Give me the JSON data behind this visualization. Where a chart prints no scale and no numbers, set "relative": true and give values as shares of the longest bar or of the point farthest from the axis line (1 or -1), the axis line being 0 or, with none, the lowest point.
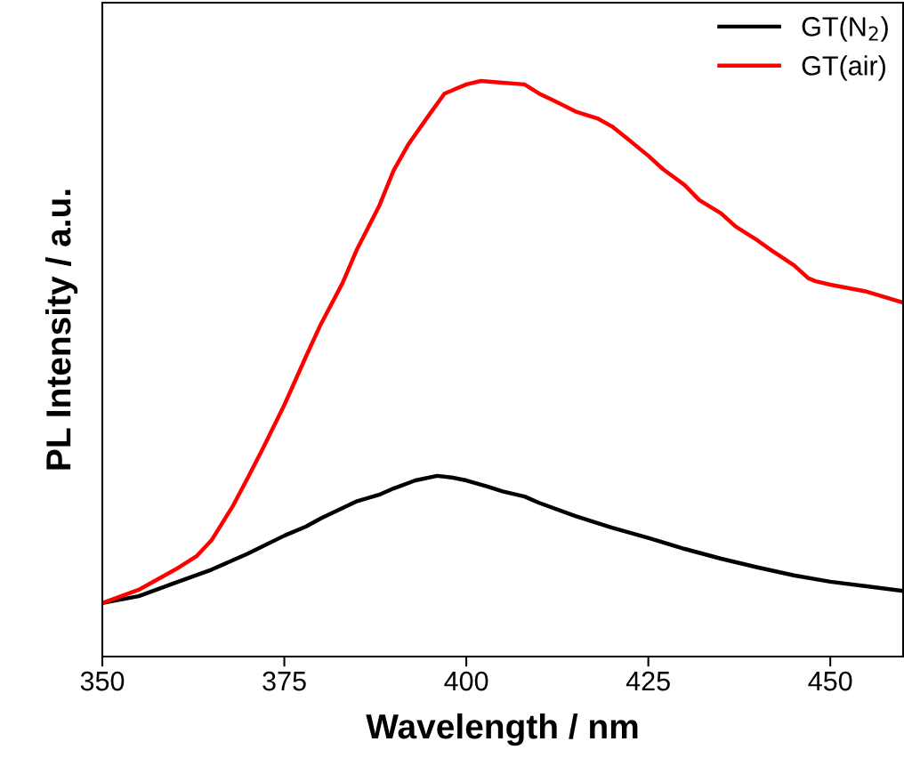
{
  "chart_data": {
    "type": "line",
    "xlabel": "Wavelength / nm",
    "ylabel": "PL Intensity / a.u.",
    "relative": true,
    "tick_labels": "x",
    "legend": "top right",
    "xlim": [
      350,
      460
    ],
    "xticks": [
      350,
      375,
      400,
      425,
      450
    ],
    "line_style": "solid",
    "series": [
      {
        "name": "GT(N$_{2}$)",
        "color": "#000000",
        "x": [
          350,
          355,
          360,
          365,
          370,
          375,
          378,
          380,
          385,
          388,
          390,
          393,
          396,
          398,
          400,
          403,
          405,
          408,
          410,
          415,
          420,
          425,
          430,
          435,
          440,
          445,
          450,
          455,
          460
        ],
        "values": [
          0.093,
          0.105,
          0.128,
          0.151,
          0.179,
          0.21,
          0.226,
          0.24,
          0.27,
          0.281,
          0.292,
          0.306,
          0.314,
          0.311,
          0.306,
          0.295,
          0.287,
          0.278,
          0.267,
          0.244,
          0.224,
          0.206,
          0.187,
          0.17,
          0.155,
          0.141,
          0.13,
          0.122,
          0.114
        ]
      },
      {
        "name": "GT(air)",
        "color": "#ff0000",
        "x": [
          350,
          355,
          360,
          363,
          365,
          368,
          370,
          372,
          375,
          378,
          380,
          383,
          385,
          388,
          390,
          392,
          395,
          397,
          400,
          402,
          405,
          408,
          410,
          412,
          415,
          418,
          420,
          422,
          425,
          427,
          430,
          432,
          435,
          437,
          440,
          442,
          445,
          447,
          448,
          450,
          455,
          460
        ],
        "values": [
          0.093,
          0.116,
          0.151,
          0.175,
          0.202,
          0.263,
          0.311,
          0.36,
          0.437,
          0.522,
          0.577,
          0.649,
          0.708,
          0.782,
          0.844,
          0.889,
          0.943,
          0.978,
          0.994,
          1,
          0.997,
          0.994,
          0.978,
          0.966,
          0.947,
          0.935,
          0.921,
          0.901,
          0.87,
          0.847,
          0.819,
          0.793,
          0.77,
          0.747,
          0.723,
          0.705,
          0.68,
          0.657,
          0.652,
          0.646,
          0.634,
          0.615
        ]
      }
    ]
  }
}
